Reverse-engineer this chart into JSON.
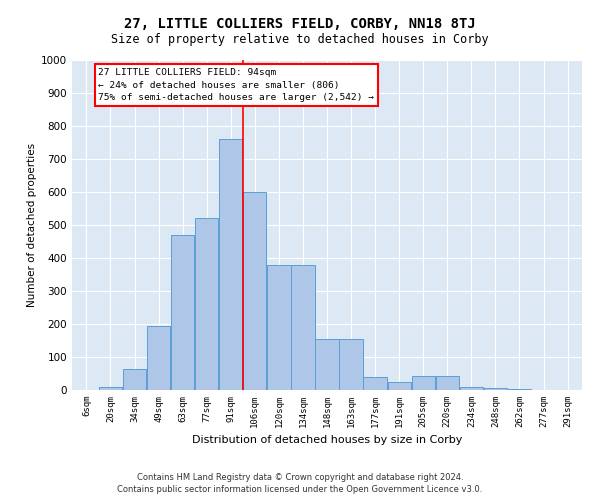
{
  "title": "27, LITTLE COLLIERS FIELD, CORBY, NN18 8TJ",
  "subtitle": "Size of property relative to detached houses in Corby",
  "xlabel": "Distribution of detached houses by size in Corby",
  "ylabel": "Number of detached properties",
  "footer_line1": "Contains HM Land Registry data © Crown copyright and database right 2024.",
  "footer_line2": "Contains public sector information licensed under the Open Government Licence v3.0.",
  "bar_labels": [
    "6sqm",
    "20sqm",
    "34sqm",
    "49sqm",
    "63sqm",
    "77sqm",
    "91sqm",
    "106sqm",
    "120sqm",
    "134sqm",
    "148sqm",
    "163sqm",
    "177sqm",
    "191sqm",
    "205sqm",
    "220sqm",
    "234sqm",
    "248sqm",
    "262sqm",
    "277sqm",
    "291sqm"
  ],
  "bar_values": [
    0,
    10,
    65,
    195,
    470,
    520,
    760,
    600,
    380,
    380,
    155,
    155,
    40,
    25,
    42,
    42,
    10,
    5,
    2,
    1,
    0
  ],
  "bar_color": "#aec6e8",
  "bar_edgecolor": "#5a9fd4",
  "annotation_line1": "27 LITTLE COLLIERS FIELD: 94sqm",
  "annotation_line2": "← 24% of detached houses are smaller (806)",
  "annotation_line3": "75% of semi-detached houses are larger (2,542) →",
  "vline_bin": 6.5,
  "ylim": [
    0,
    1000
  ],
  "yticks": [
    0,
    100,
    200,
    300,
    400,
    500,
    600,
    700,
    800,
    900,
    1000
  ],
  "axes_background": "#dce9f5",
  "annotation_box_color": "white",
  "annotation_box_edgecolor": "red",
  "vline_color": "red",
  "title_fontsize": 10,
  "subtitle_fontsize": 8.5
}
